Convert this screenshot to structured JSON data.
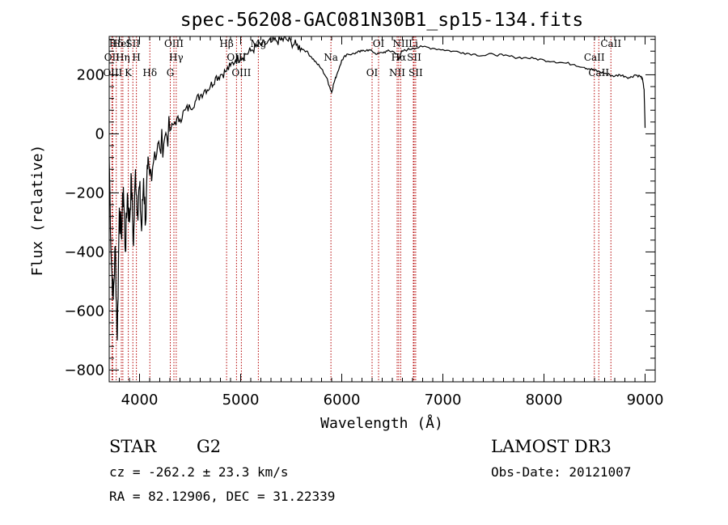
{
  "chart_data": {
    "type": "line",
    "title": "spec-56208-GAC081N30B1_sp15-134.fits",
    "xlabel": "Wavelength (Å)",
    "ylabel": "Flux (relative)",
    "xlim": [
      3700,
      9100
    ],
    "ylim": [
      -840,
      330
    ],
    "x_ticks": [
      4000,
      5000,
      6000,
      7000,
      8000,
      9000
    ],
    "y_ticks": [
      -800,
      -600,
      -400,
      -200,
      0,
      200
    ],
    "x_minor_step": 100,
    "y_minor_step": 40,
    "grid": false,
    "series": [
      {
        "name": "flux",
        "color": "#000000",
        "x": [
          3700,
          3720,
          3740,
          3760,
          3780,
          3800,
          3820,
          3840,
          3860,
          3880,
          3900,
          3920,
          3940,
          3960,
          3980,
          4000,
          4020,
          4040,
          4060,
          4080,
          4100,
          4150,
          4200,
          4250,
          4300,
          4350,
          4400,
          4450,
          4500,
          4550,
          4600,
          4650,
          4700,
          4750,
          4800,
          4850,
          4900,
          4950,
          5000,
          5050,
          5100,
          5150,
          5200,
          5250,
          5300,
          5350,
          5400,
          5450,
          5500,
          5550,
          5600,
          5650,
          5700,
          5750,
          5800,
          5850,
          5880,
          5900,
          5920,
          5950,
          6000,
          6050,
          6100,
          6150,
          6200,
          6250,
          6300,
          6350,
          6400,
          6450,
          6500,
          6550,
          6563,
          6580,
          6600,
          6650,
          6700,
          6800,
          6900,
          7000,
          7100,
          7200,
          7300,
          7400,
          7500,
          7600,
          7700,
          7800,
          7900,
          8000,
          8100,
          8200,
          8300,
          8400,
          8450,
          8500,
          8550,
          8600,
          8650,
          8700,
          8750,
          8800,
          8850,
          8900,
          8950,
          8970,
          8990,
          9000
        ],
        "y": [
          -80,
          -420,
          -560,
          -380,
          -700,
          -250,
          -350,
          -180,
          -400,
          -200,
          -300,
          -150,
          -380,
          -120,
          -260,
          -180,
          -330,
          -150,
          -300,
          -120,
          -140,
          -60,
          -50,
          -10,
          10,
          40,
          50,
          80,
          90,
          110,
          130,
          150,
          160,
          190,
          200,
          210,
          230,
          250,
          260,
          270,
          280,
          295,
          300,
          305,
          310,
          315,
          318,
          320,
          310,
          300,
          290,
          280,
          260,
          240,
          220,
          190,
          160,
          140,
          170,
          200,
          250,
          270,
          270,
          275,
          280,
          285,
          280,
          270,
          275,
          280,
          280,
          270,
          250,
          270,
          280,
          285,
          290,
          295,
          290,
          285,
          280,
          275,
          270,
          265,
          270,
          265,
          260,
          258,
          255,
          250,
          245,
          240,
          235,
          225,
          220,
          215,
          210,
          205,
          200,
          195,
          200,
          195,
          190,
          200,
          195,
          190,
          150,
          20
        ]
      }
    ],
    "lines": [
      {
        "label": "Hδ",
        "wl": 3770
      },
      {
        "label": "OII",
        "wl": 3727
      },
      {
        "label": "OIII",
        "wl": 3735
      },
      {
        "label": "HeI",
        "wl": 3820
      },
      {
        "label": "Hη",
        "wl": 3835
      },
      {
        "label": "K",
        "wl": 3889
      },
      {
        "label": "SII",
        "wl": 3934
      },
      {
        "label": "H",
        "wl": 3969
      },
      {
        "label": "Hδ",
        "wl": 4102
      },
      {
        "label": "OIII",
        "wl": 4340
      },
      {
        "label": "Hγ",
        "wl": 4363
      },
      {
        "label": "G",
        "wl": 4304
      },
      {
        "label": "Hβ",
        "wl": 4861
      },
      {
        "label": "OIII",
        "wl": 4959
      },
      {
        "label": "OIII",
        "wl": 5007
      },
      {
        "label": "Mg",
        "wl": 5175
      },
      {
        "label": "Na",
        "wl": 5893
      },
      {
        "label": "OI",
        "wl": 6300
      },
      {
        "label": "OI",
        "wl": 6364
      },
      {
        "label": "Hα",
        "wl": 6563
      },
      {
        "label": "NII",
        "wl": 6548
      },
      {
        "label": "NII",
        "wl": 6583
      },
      {
        "label": "SII",
        "wl": 6716
      },
      {
        "label": "SII",
        "wl": 6731
      },
      {
        "label": "Li",
        "wl": 6708
      },
      {
        "label": "CaII",
        "wl": 8498
      },
      {
        "label": "CaII",
        "wl": 8542
      },
      {
        "label": "CaII",
        "wl": 8662
      }
    ],
    "line_color": "#b40000"
  },
  "info": {
    "object_class": "STAR",
    "subclass": "G2",
    "survey": "LAMOST DR3",
    "cz": "cz = -262.2 ± 23.3 km/s",
    "obs_date": "Obs-Date: 20121007",
    "coords": "RA =  82.12906, DEC =  31.22339"
  }
}
